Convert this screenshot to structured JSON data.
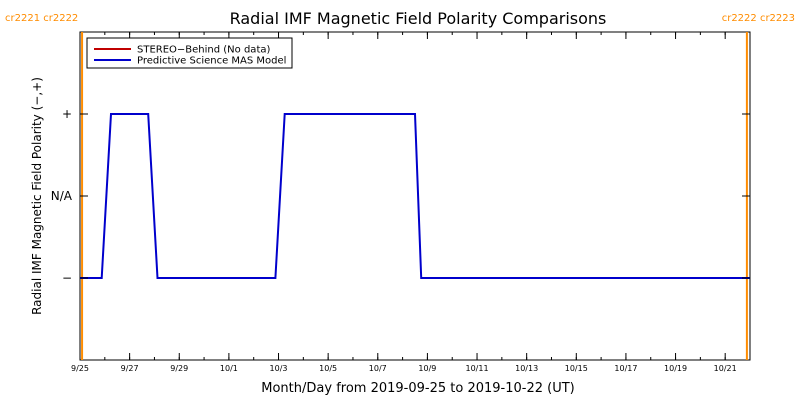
{
  "chart_data": {
    "type": "line",
    "title": "Radial IMF Magnetic Field Polarity Comparisons",
    "xlabel": "Month/Day from 2019-09-25 to 2019-10-22 (UT)",
    "ylabel": "Radial IMF Magnetic Field Polarity (−,+)",
    "x_unit": "days",
    "xlim": [
      "2019-09-25",
      "2019-10-22"
    ],
    "x_ticks": [
      {
        "date": "2019-09-25",
        "label": "9/25"
      },
      {
        "date": "2019-09-27",
        "label": "9/27"
      },
      {
        "date": "2019-09-29",
        "label": "9/29"
      },
      {
        "date": "2019-10-01",
        "label": "10/1"
      },
      {
        "date": "2019-10-03",
        "label": "10/3"
      },
      {
        "date": "2019-10-05",
        "label": "10/5"
      },
      {
        "date": "2019-10-07",
        "label": "10/7"
      },
      {
        "date": "2019-10-09",
        "label": "10/9"
      },
      {
        "date": "2019-10-11",
        "label": "10/11"
      },
      {
        "date": "2019-10-13",
        "label": "10/13"
      },
      {
        "date": "2019-10-15",
        "label": "10/15"
      },
      {
        "date": "2019-10-17",
        "label": "10/17"
      },
      {
        "date": "2019-10-19",
        "label": "10/19"
      },
      {
        "date": "2019-10-21",
        "label": "10/21"
      }
    ],
    "ylim": [
      -2,
      2
    ],
    "y_ticks": [
      {
        "value": 1,
        "label": "+"
      },
      {
        "value": 0,
        "label": "N/A"
      },
      {
        "value": -1,
        "label": "−"
      }
    ],
    "grid": false,
    "legend_position": "top-left",
    "series": [
      {
        "name": "STEREO−Behind (No data)",
        "color": "#c00000",
        "points": []
      },
      {
        "name": "Predictive Science MAS Model",
        "color": "#0000cc",
        "points": [
          [
            "2019-09-25 00:00",
            -1
          ],
          [
            "2019-09-25 21:00",
            -1
          ],
          [
            "2019-09-26 06:00",
            1
          ],
          [
            "2019-09-27 18:00",
            1
          ],
          [
            "2019-09-28 03:00",
            -1
          ],
          [
            "2019-10-02 21:00",
            -1
          ],
          [
            "2019-10-03 06:00",
            1
          ],
          [
            "2019-10-08 12:00",
            1
          ],
          [
            "2019-10-08 18:00",
            -1
          ],
          [
            "2019-10-22 00:00",
            -1
          ]
        ]
      }
    ],
    "carrington_markers": [
      {
        "date": "2019-09-25 02:00",
        "color": "#ff8c00",
        "label": "cr2221 cr2222",
        "label_side": "left"
      },
      {
        "date": "2019-10-21 21:00",
        "color": "#ff8c00",
        "label": "cr2222 cr2223",
        "label_side": "right"
      }
    ]
  }
}
